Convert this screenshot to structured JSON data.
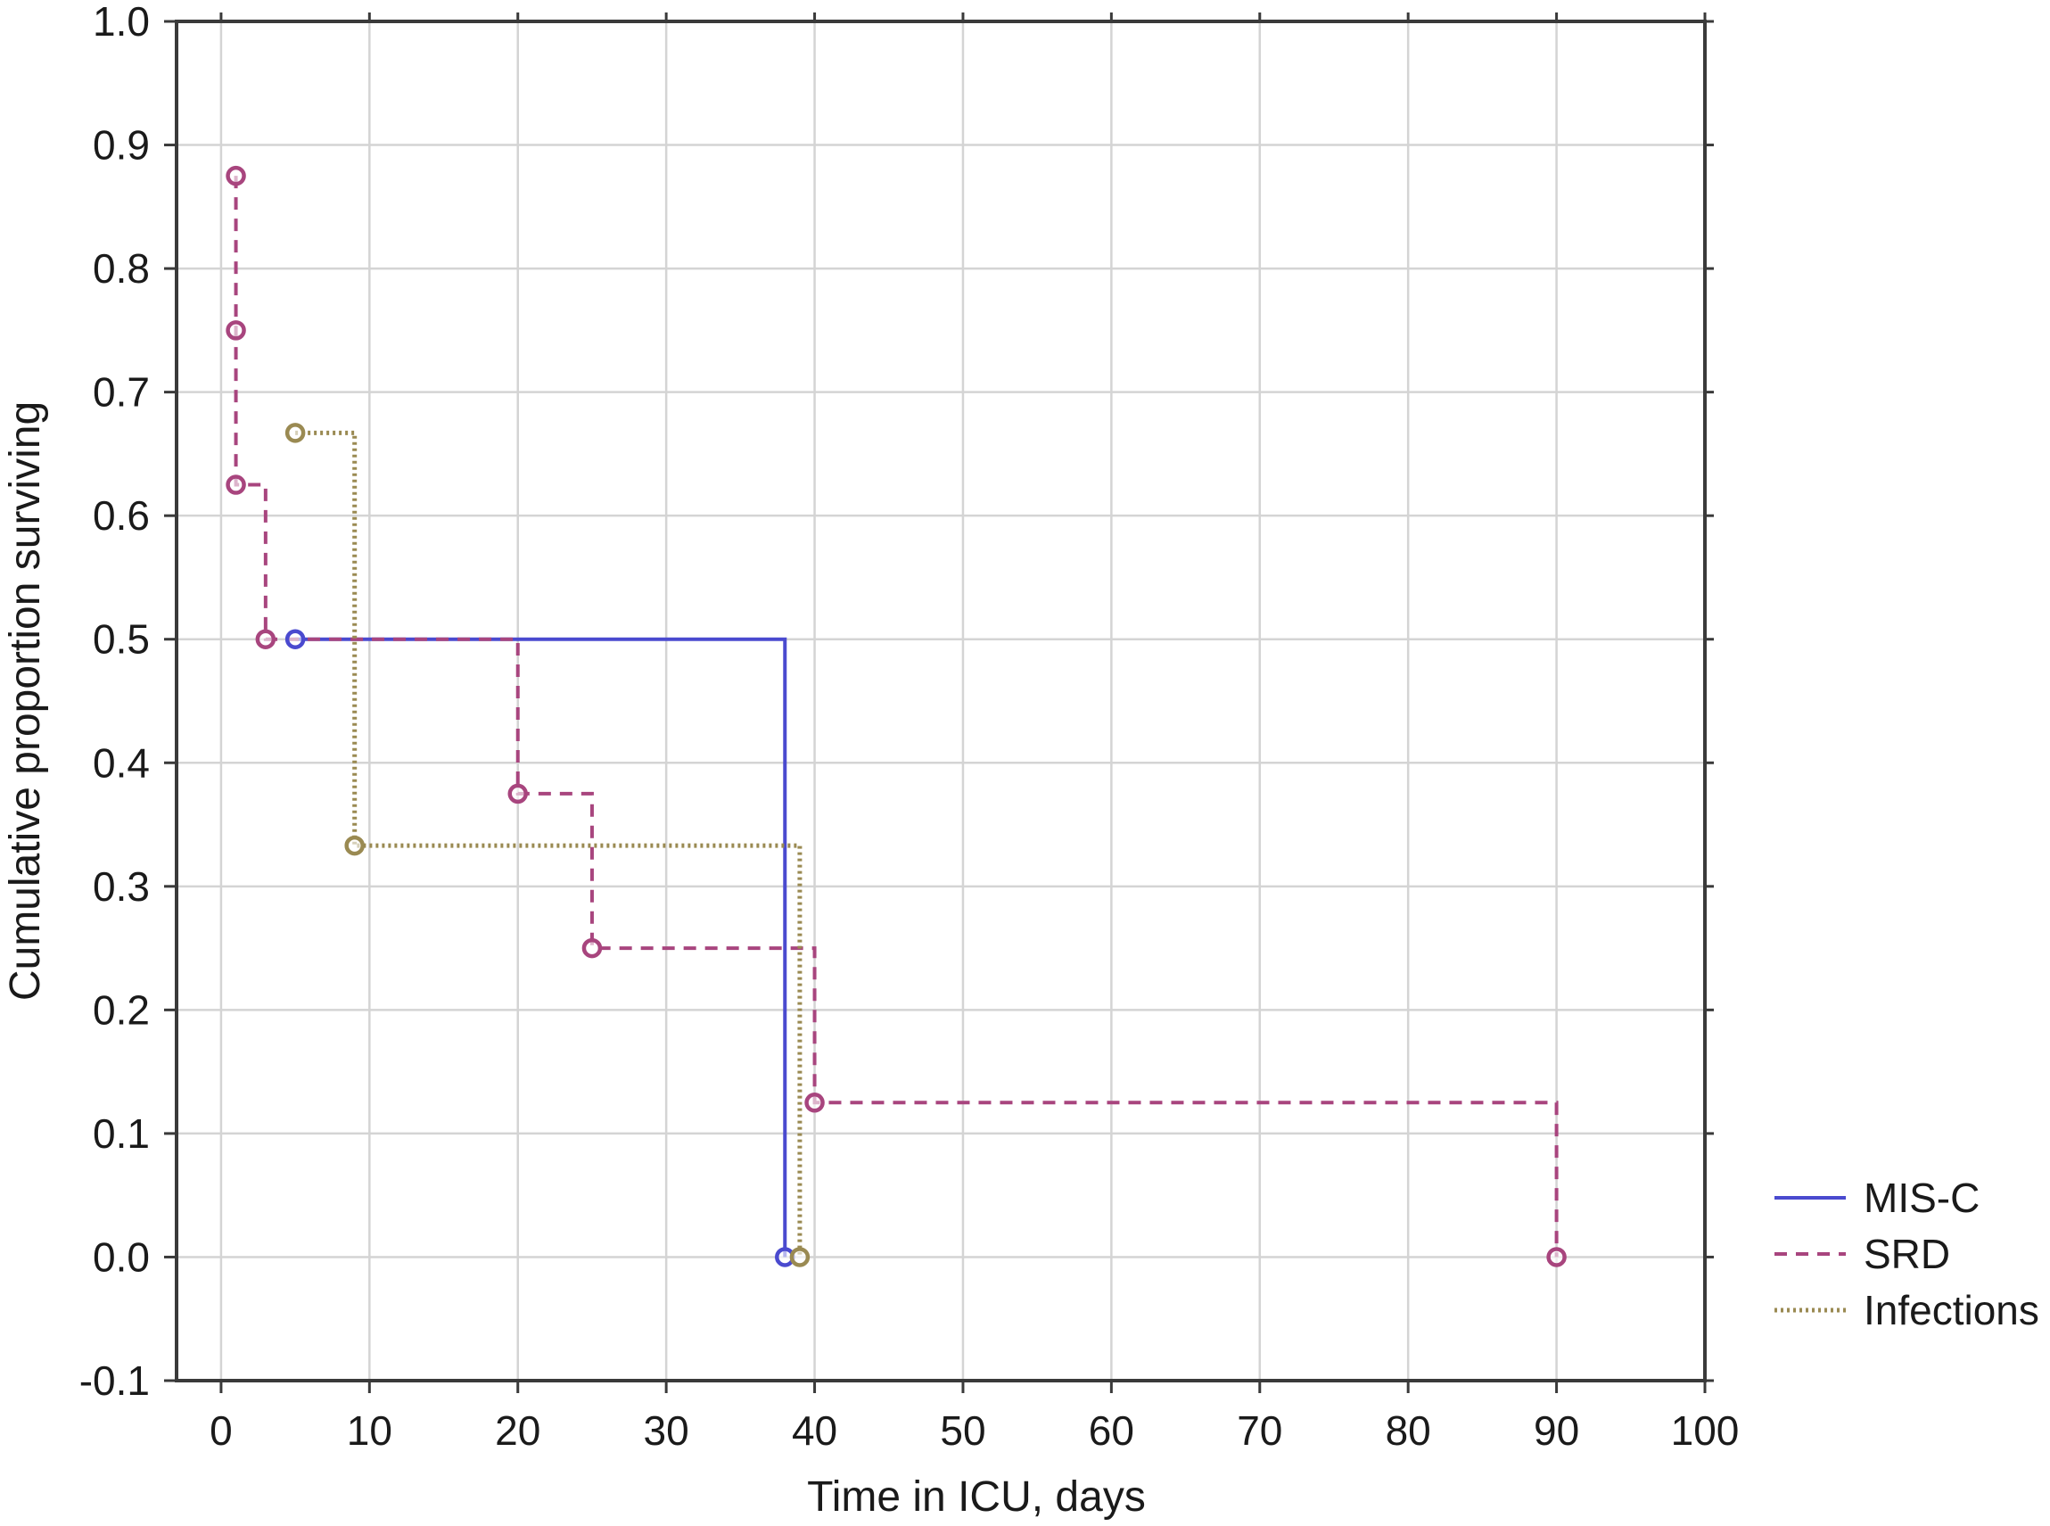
{
  "chart_data": {
    "type": "line",
    "title": "",
    "xlabel": "Time in ICU, days",
    "ylabel": "Cumulative proportion surviving",
    "xlim": [
      -3,
      100
    ],
    "ylim": [
      -0.1,
      1.0
    ],
    "x_ticks": [
      0,
      10,
      20,
      30,
      40,
      50,
      60,
      70,
      80,
      90,
      100
    ],
    "y_ticks": [
      -0.1,
      0.0,
      0.1,
      0.2,
      0.3,
      0.4,
      0.5,
      0.6,
      0.7,
      0.8,
      0.9,
      1.0
    ],
    "x_tick_labels": [
      "0",
      "10",
      "20",
      "30",
      "40",
      "50",
      "60",
      "70",
      "80",
      "90",
      "100"
    ],
    "y_tick_labels": [
      "-0.1",
      "0.0",
      "0.1",
      "0.2",
      "0.3",
      "0.4",
      "0.5",
      "0.6",
      "0.7",
      "0.8",
      "0.9",
      "1.0"
    ],
    "grid": true,
    "legend_position": "right, below plot area",
    "series": [
      {
        "name": "MIS-C",
        "style": "solid",
        "color": "#4a4acf",
        "step_points": [
          [
            5,
            0.5
          ],
          [
            38,
            0.5
          ],
          [
            38,
            0.0
          ]
        ],
        "markers": [
          [
            5,
            0.5
          ],
          [
            38,
            0.0
          ]
        ]
      },
      {
        "name": "SRD",
        "style": "dashed",
        "color": "#a8457e",
        "step_points": [
          [
            1,
            0.875
          ],
          [
            1,
            0.75
          ],
          [
            1,
            0.625
          ],
          [
            3,
            0.625
          ],
          [
            3,
            0.5
          ],
          [
            20,
            0.5
          ],
          [
            20,
            0.375
          ],
          [
            25,
            0.375
          ],
          [
            25,
            0.25
          ],
          [
            40,
            0.25
          ],
          [
            40,
            0.125
          ],
          [
            90,
            0.125
          ],
          [
            90,
            0.0
          ]
        ],
        "markers": [
          [
            1,
            0.875
          ],
          [
            1,
            0.75
          ],
          [
            1,
            0.625
          ],
          [
            3,
            0.5
          ],
          [
            20,
            0.375
          ],
          [
            25,
            0.25
          ],
          [
            40,
            0.125
          ],
          [
            90,
            0.0
          ]
        ]
      },
      {
        "name": "Infections",
        "style": "dotted",
        "color": "#9a8a52",
        "step_points": [
          [
            5,
            0.667
          ],
          [
            9,
            0.667
          ],
          [
            9,
            0.333
          ],
          [
            39,
            0.333
          ],
          [
            39,
            0.0
          ]
        ],
        "markers": [
          [
            5,
            0.667
          ],
          [
            9,
            0.333
          ],
          [
            39,
            0.0
          ]
        ]
      }
    ]
  }
}
